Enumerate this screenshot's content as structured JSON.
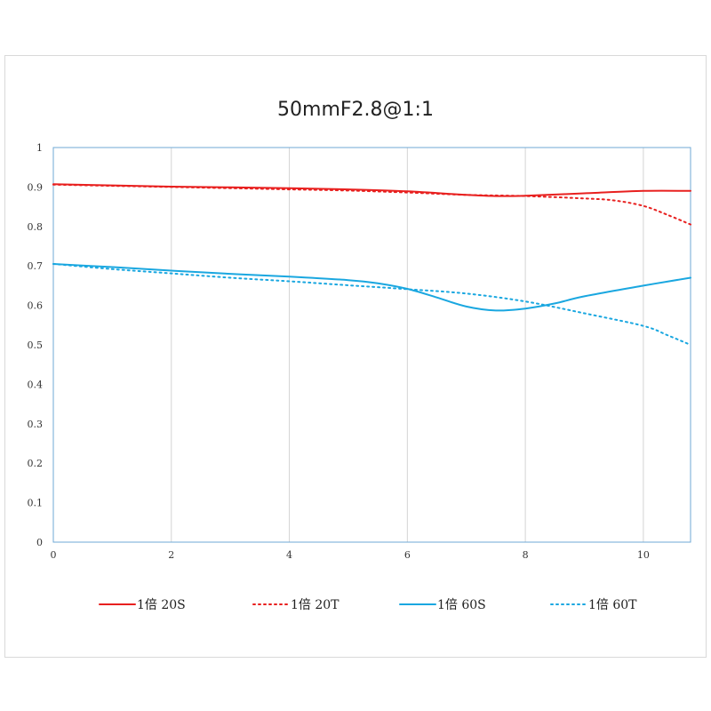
{
  "chart_data": {
    "type": "line",
    "title": "50mmF2.8@1:1",
    "xlabel": "",
    "ylabel": "",
    "xlim": [
      0,
      10.8
    ],
    "ylim": [
      0,
      1
    ],
    "x_ticks": [
      0,
      2,
      4,
      6,
      8,
      10
    ],
    "y_ticks": [
      0,
      0.1,
      0.2,
      0.3,
      0.4,
      0.5,
      0.6,
      0.7,
      0.8,
      0.9,
      1
    ],
    "x_tick_labels": [
      "0",
      "2",
      "4",
      "6",
      "8",
      "10"
    ],
    "y_tick_labels": [
      "0",
      "0.1",
      "0.2",
      "0.3",
      "0.4",
      "0.5",
      "0.6",
      "0.7",
      "0.8",
      "0.9",
      "1"
    ],
    "grid": "vertical",
    "legend_position": "bottom",
    "series": [
      {
        "name": "1倍 20S",
        "color": "#e8201f",
        "style": "solid",
        "x": [
          0,
          1,
          2,
          3,
          4,
          5,
          6,
          7,
          7.5,
          8,
          9,
          10,
          10.8
        ],
        "y": [
          0.907,
          0.904,
          0.901,
          0.899,
          0.897,
          0.894,
          0.889,
          0.88,
          0.877,
          0.878,
          0.884,
          0.89,
          0.89
        ]
      },
      {
        "name": "1倍 20T",
        "color": "#e8201f",
        "style": "dotted",
        "x": [
          0,
          1,
          2,
          3,
          4,
          5,
          6,
          7,
          8,
          9,
          9.5,
          10,
          10.4,
          10.8
        ],
        "y": [
          0.906,
          0.903,
          0.9,
          0.897,
          0.894,
          0.891,
          0.886,
          0.88,
          0.877,
          0.871,
          0.866,
          0.852,
          0.83,
          0.805
        ]
      },
      {
        "name": "1倍 60S",
        "color": "#1aa7e0",
        "style": "solid",
        "x": [
          0,
          1,
          2,
          3,
          4,
          5,
          5.5,
          6,
          6.5,
          7,
          7.5,
          8,
          8.5,
          9,
          10,
          10.8
        ],
        "y": [
          0.705,
          0.697,
          0.688,
          0.68,
          0.673,
          0.664,
          0.656,
          0.642,
          0.62,
          0.597,
          0.587,
          0.592,
          0.605,
          0.623,
          0.65,
          0.67
        ]
      },
      {
        "name": "1倍 60T",
        "color": "#1aa7e0",
        "style": "dotted",
        "x": [
          0,
          1,
          2,
          3,
          4,
          5,
          6,
          7,
          8,
          9,
          10,
          10.4,
          10.8
        ],
        "y": [
          0.705,
          0.692,
          0.681,
          0.67,
          0.661,
          0.651,
          0.641,
          0.63,
          0.61,
          0.58,
          0.548,
          0.525,
          0.5
        ]
      }
    ]
  }
}
